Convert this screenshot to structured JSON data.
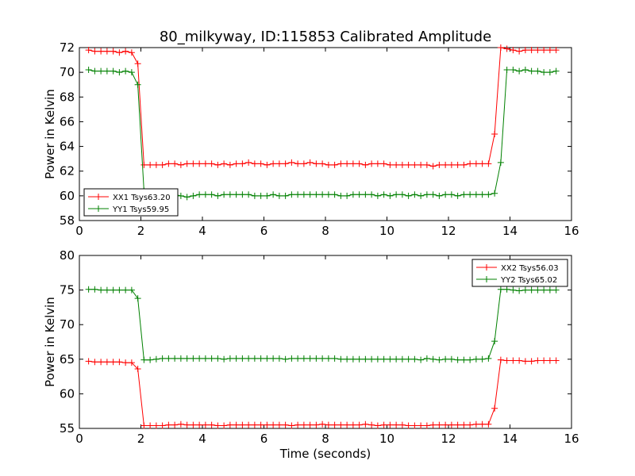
{
  "title": "80_milkyway, ID:115853 Calibrated Amplitude",
  "colors": {
    "xx": "#ff0000",
    "yy": "#008000"
  },
  "chart_data": [
    {
      "type": "line",
      "title": "80_milkyway, ID:115853 Calibrated Amplitude",
      "xlabel": "",
      "ylabel": "Power in Kelvin",
      "xlim": [
        0,
        16
      ],
      "ylim": [
        58,
        72
      ],
      "xticks": [
        "0",
        "2",
        "4",
        "6",
        "8",
        "10",
        "12",
        "14",
        "16"
      ],
      "yticks": [
        "58",
        "60",
        "62",
        "64",
        "66",
        "68",
        "70",
        "72"
      ],
      "legend": "lower-left",
      "grid": false,
      "x": [
        0.3,
        0.5,
        0.7,
        0.9,
        1.1,
        1.3,
        1.5,
        1.7,
        1.9,
        2.1,
        2.3,
        2.5,
        2.7,
        2.9,
        3.1,
        3.3,
        3.5,
        3.7,
        3.9,
        4.1,
        4.3,
        4.5,
        4.7,
        4.9,
        5.1,
        5.3,
        5.5,
        5.7,
        5.9,
        6.1,
        6.3,
        6.5,
        6.7,
        6.9,
        7.1,
        7.3,
        7.5,
        7.7,
        7.9,
        8.1,
        8.3,
        8.5,
        8.7,
        8.9,
        9.1,
        9.3,
        9.5,
        9.7,
        9.9,
        10.1,
        10.3,
        10.5,
        10.7,
        10.9,
        11.1,
        11.3,
        11.5,
        11.7,
        11.9,
        12.1,
        12.3,
        12.5,
        12.7,
        12.9,
        13.1,
        13.3,
        13.5,
        13.7,
        13.9,
        14.1,
        14.3,
        14.5,
        14.7,
        14.9,
        15.1,
        15.3,
        15.5
      ],
      "series": [
        {
          "name": "XX1 Tsys63.20",
          "color": "#ff0000",
          "values": [
            71.8,
            71.7,
            71.7,
            71.7,
            71.7,
            71.6,
            71.7,
            71.6,
            70.7,
            62.5,
            62.5,
            62.5,
            62.5,
            62.6,
            62.6,
            62.5,
            62.6,
            62.6,
            62.6,
            62.6,
            62.6,
            62.5,
            62.6,
            62.5,
            62.6,
            62.6,
            62.7,
            62.6,
            62.6,
            62.5,
            62.6,
            62.6,
            62.6,
            62.7,
            62.6,
            62.6,
            62.7,
            62.6,
            62.6,
            62.5,
            62.5,
            62.6,
            62.6,
            62.6,
            62.6,
            62.5,
            62.6,
            62.6,
            62.6,
            62.5,
            62.5,
            62.5,
            62.5,
            62.5,
            62.5,
            62.5,
            62.4,
            62.5,
            62.5,
            62.5,
            62.5,
            62.5,
            62.6,
            62.6,
            62.6,
            62.6,
            65.0,
            72.0,
            71.9,
            71.8,
            71.7,
            71.8,
            71.8,
            71.8,
            71.8,
            71.8,
            71.8
          ]
        },
        {
          "name": "YY1 Tsys59.95",
          "color": "#008000",
          "values": [
            70.2,
            70.1,
            70.1,
            70.1,
            70.1,
            70.0,
            70.1,
            70.0,
            69.0,
            60.4,
            60.1,
            60.0,
            60.0,
            60.1,
            60.1,
            60.0,
            59.9,
            60.0,
            60.1,
            60.1,
            60.1,
            60.0,
            60.1,
            60.1,
            60.1,
            60.1,
            60.1,
            60.0,
            60.0,
            60.0,
            60.1,
            60.0,
            60.0,
            60.1,
            60.1,
            60.1,
            60.1,
            60.1,
            60.1,
            60.1,
            60.1,
            60.0,
            60.0,
            60.1,
            60.1,
            60.1,
            60.1,
            60.0,
            60.1,
            60.0,
            60.1,
            60.1,
            60.0,
            60.1,
            60.0,
            60.1,
            60.1,
            60.0,
            60.1,
            60.1,
            60.0,
            60.1,
            60.1,
            60.1,
            60.1,
            60.1,
            60.2,
            62.7,
            70.2,
            70.2,
            70.1,
            70.2,
            70.1,
            70.1,
            70.0,
            70.0,
            70.1
          ]
        }
      ]
    },
    {
      "type": "line",
      "title": "",
      "xlabel": "Time (seconds)",
      "ylabel": "Power in Kelvin",
      "xlim": [
        0,
        16
      ],
      "ylim": [
        55,
        80
      ],
      "xticks": [
        "0",
        "2",
        "4",
        "6",
        "8",
        "10",
        "12",
        "14",
        "16"
      ],
      "yticks": [
        "55",
        "60",
        "65",
        "70",
        "75",
        "80"
      ],
      "legend": "upper-right",
      "grid": false,
      "x": [
        0.3,
        0.5,
        0.7,
        0.9,
        1.1,
        1.3,
        1.5,
        1.7,
        1.9,
        2.1,
        2.3,
        2.5,
        2.7,
        2.9,
        3.1,
        3.3,
        3.5,
        3.7,
        3.9,
        4.1,
        4.3,
        4.5,
        4.7,
        4.9,
        5.1,
        5.3,
        5.5,
        5.7,
        5.9,
        6.1,
        6.3,
        6.5,
        6.7,
        6.9,
        7.1,
        7.3,
        7.5,
        7.7,
        7.9,
        8.1,
        8.3,
        8.5,
        8.7,
        8.9,
        9.1,
        9.3,
        9.5,
        9.7,
        9.9,
        10.1,
        10.3,
        10.5,
        10.7,
        10.9,
        11.1,
        11.3,
        11.5,
        11.7,
        11.9,
        12.1,
        12.3,
        12.5,
        12.7,
        12.9,
        13.1,
        13.3,
        13.5,
        13.7,
        13.9,
        14.1,
        14.3,
        14.5,
        14.7,
        14.9,
        15.1,
        15.3,
        15.5
      ],
      "series": [
        {
          "name": "XX2 Tsys56.03",
          "color": "#ff0000",
          "values": [
            64.7,
            64.6,
            64.6,
            64.6,
            64.6,
            64.6,
            64.5,
            64.5,
            63.6,
            55.4,
            55.4,
            55.4,
            55.4,
            55.5,
            55.5,
            55.6,
            55.5,
            55.5,
            55.5,
            55.5,
            55.5,
            55.4,
            55.4,
            55.5,
            55.5,
            55.5,
            55.5,
            55.5,
            55.5,
            55.5,
            55.5,
            55.5,
            55.5,
            55.4,
            55.5,
            55.5,
            55.5,
            55.5,
            55.6,
            55.5,
            55.5,
            55.5,
            55.5,
            55.5,
            55.5,
            55.6,
            55.5,
            55.4,
            55.5,
            55.5,
            55.5,
            55.5,
            55.4,
            55.4,
            55.4,
            55.4,
            55.5,
            55.5,
            55.5,
            55.5,
            55.5,
            55.5,
            55.5,
            55.6,
            55.6,
            55.6,
            57.9,
            64.9,
            64.8,
            64.8,
            64.8,
            64.7,
            64.7,
            64.8,
            64.8,
            64.8,
            64.8
          ]
        },
        {
          "name": "YY2 Tsys65.02",
          "color": "#008000",
          "values": [
            75.1,
            75.1,
            75.0,
            75.0,
            75.0,
            75.0,
            75.0,
            75.0,
            73.8,
            64.9,
            64.9,
            65.0,
            65.1,
            65.1,
            65.1,
            65.1,
            65.1,
            65.1,
            65.1,
            65.1,
            65.1,
            65.1,
            65.0,
            65.1,
            65.1,
            65.1,
            65.1,
            65.1,
            65.1,
            65.1,
            65.1,
            65.1,
            65.0,
            65.1,
            65.1,
            65.1,
            65.1,
            65.1,
            65.1,
            65.1,
            65.1,
            65.0,
            65.0,
            65.0,
            65.0,
            65.0,
            65.0,
            65.0,
            65.0,
            65.0,
            65.0,
            65.0,
            65.0,
            65.0,
            64.9,
            65.1,
            65.0,
            64.9,
            65.0,
            65.0,
            64.9,
            64.9,
            64.9,
            65.0,
            65.0,
            65.1,
            67.6,
            75.1,
            75.1,
            75.0,
            74.9,
            75.0,
            75.0,
            75.0,
            75.0,
            75.0,
            75.0
          ]
        }
      ]
    }
  ]
}
